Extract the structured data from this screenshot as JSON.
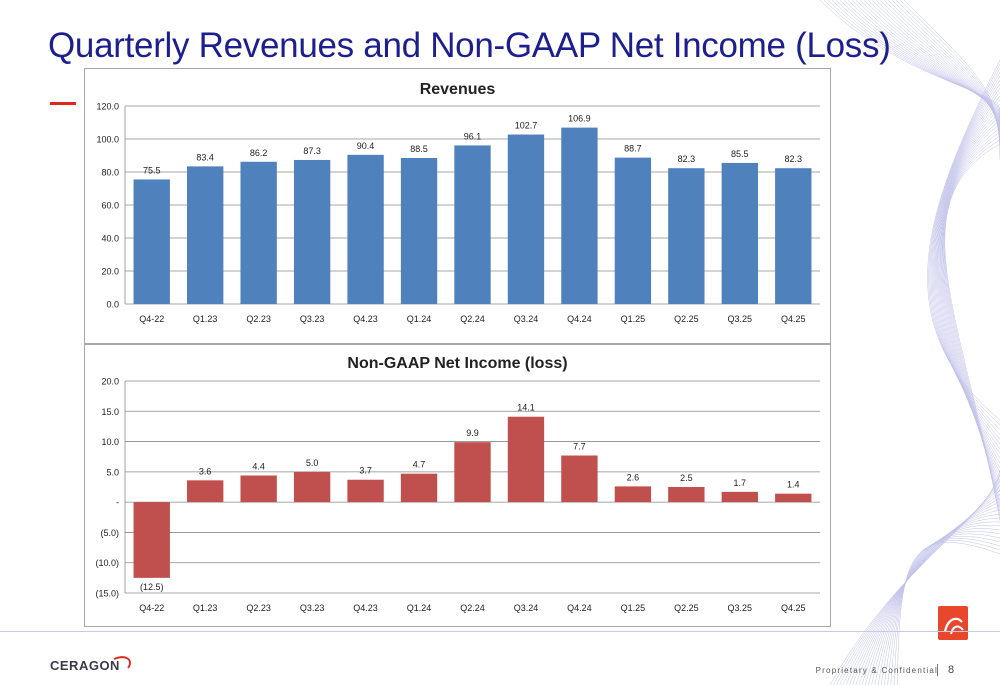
{
  "slide": {
    "title": "Quarterly Revenues and Non-GAAP Net Income (Loss)",
    "footer": "Proprietary & Confidential",
    "page_number": "8",
    "logo_text": "CERAGON"
  },
  "colors": {
    "title": "#1e1f8f",
    "revenue_bar": "#4f81bd",
    "income_bar": "#c0504d",
    "accent": "#e4251b"
  },
  "chart_data": [
    {
      "type": "bar",
      "title": "Revenues",
      "categories": [
        "Q4-22",
        "Q1.23",
        "Q2.23",
        "Q3.23",
        "Q4.23",
        "Q1.24",
        "Q2.24",
        "Q3.24",
        "Q4.24",
        "Q1.25",
        "Q2.25",
        "Q3.25",
        "Q4.25"
      ],
      "values": [
        75.5,
        83.4,
        86.2,
        87.3,
        90.4,
        88.5,
        96.1,
        102.7,
        106.9,
        88.7,
        82.3,
        85.5,
        82.3
      ],
      "data_labels": [
        "75.5",
        "83.4",
        "86.2",
        "87.3",
        "90.4",
        "88.5",
        "96.1",
        "102.7",
        "106.9",
        "88.7",
        "82.3",
        "85.5",
        "82.3"
      ],
      "ylim": [
        0,
        120
      ],
      "yticks": [
        0,
        20,
        40,
        60,
        80,
        100,
        120
      ],
      "ytick_labels": [
        "0.0",
        "20.0",
        "40.0",
        "60.0",
        "80.0",
        "100.0",
        "120.0"
      ],
      "grid": true,
      "color": "#4f81bd"
    },
    {
      "type": "bar",
      "title": "Non-GAAP Net Income (loss)",
      "categories": [
        "Q4-22",
        "Q1.23",
        "Q2.23",
        "Q3.23",
        "Q4.23",
        "Q1.24",
        "Q2.24",
        "Q3.24",
        "Q4.24",
        "Q1.25",
        "Q2.25",
        "Q3.25",
        "Q4.25"
      ],
      "values": [
        -12.5,
        3.6,
        4.4,
        5.0,
        3.7,
        4.7,
        9.9,
        14.1,
        7.7,
        2.6,
        2.5,
        1.7,
        1.4
      ],
      "data_labels": [
        "(12.5)",
        "3.6",
        "4.4",
        "5.0",
        "3.7",
        "4.7",
        "9.9",
        "14.1",
        "7.7",
        "2.6",
        "2.5",
        "1.7",
        "1.4"
      ],
      "ylim": [
        -15,
        20
      ],
      "yticks": [
        -15,
        -10,
        -5,
        0,
        5,
        10,
        15,
        20
      ],
      "ytick_labels": [
        "(15.0)",
        "(10.0)",
        "(5.0)",
        "-",
        "5.0",
        "10.0",
        "15.0",
        "20.0"
      ],
      "grid": true,
      "color": "#c0504d"
    }
  ]
}
